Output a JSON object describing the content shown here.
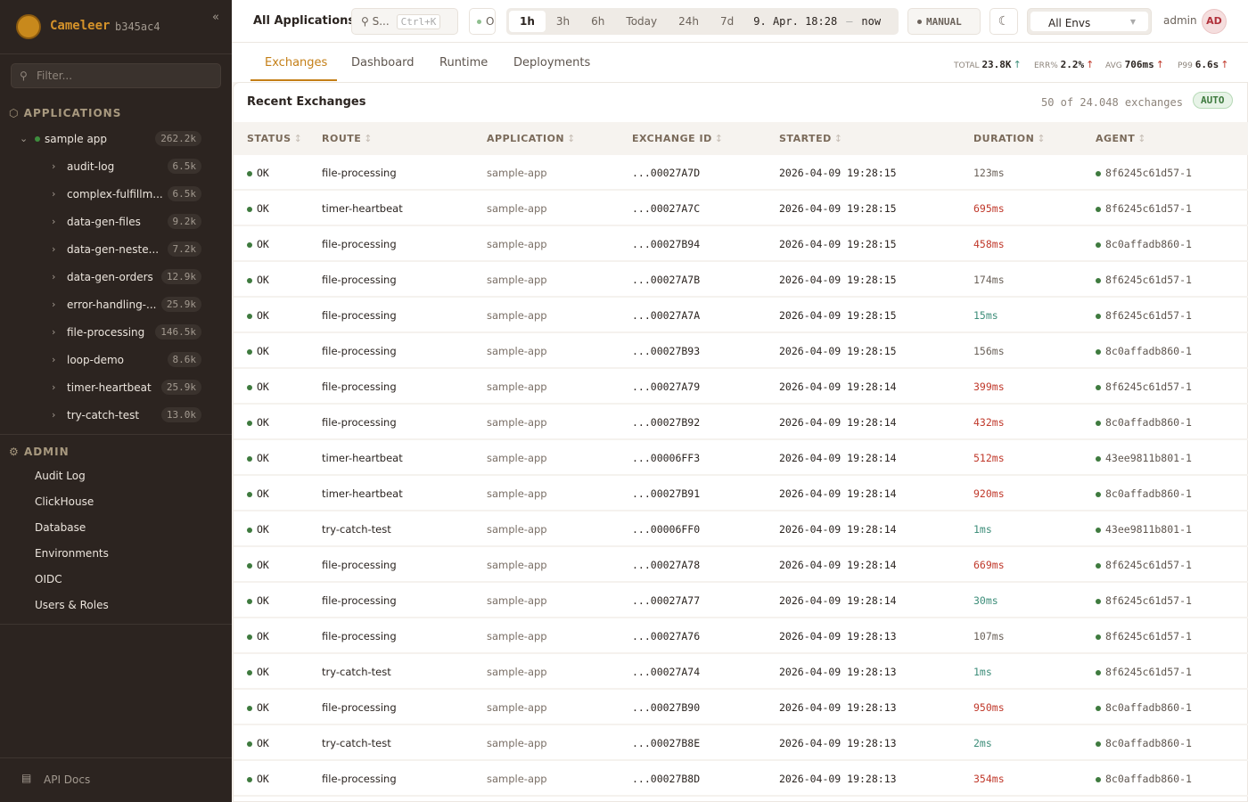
{
  "brand": {
    "name": "Cameleer",
    "version": "b345ac4"
  },
  "sidebar": {
    "filter_placeholder": "Filter...",
    "applications_label": "APPLICATIONS",
    "app": {
      "name": "sample app",
      "count": "262.2k",
      "status_color": "#3e8e3e"
    },
    "routes": [
      {
        "label": "audit-log",
        "count": "6.5k"
      },
      {
        "label": "complex-fulfillm...",
        "count": "6.5k"
      },
      {
        "label": "data-gen-files",
        "count": "9.2k"
      },
      {
        "label": "data-gen-neste...",
        "count": "7.2k"
      },
      {
        "label": "data-gen-orders",
        "count": "12.9k"
      },
      {
        "label": "error-handling-...",
        "count": "25.9k"
      },
      {
        "label": "file-processing",
        "count": "146.5k"
      },
      {
        "label": "loop-demo",
        "count": "8.6k"
      },
      {
        "label": "timer-heartbeat",
        "count": "25.9k"
      },
      {
        "label": "try-catch-test",
        "count": "13.0k"
      }
    ],
    "admin_label": "ADMIN",
    "admin_items": [
      "Audit Log",
      "ClickHouse",
      "Database",
      "Environments",
      "OIDC",
      "Users & Roles"
    ],
    "api_docs": "API Docs"
  },
  "topbar": {
    "title": "All Applications",
    "search_placeholder": "S...",
    "search_shortcut": "Ctrl+K",
    "status_label": "O",
    "ranges": [
      "1h",
      "3h",
      "6h",
      "Today",
      "24h",
      "7d"
    ],
    "active_range": "1h",
    "range_from": "9. Apr. 18:28",
    "range_sep": "–",
    "range_to": "now",
    "refresh_mode": "MANUAL",
    "env": "All Envs",
    "user": "admin",
    "avatar": "AD"
  },
  "tabs": [
    "Exchanges",
    "Dashboard",
    "Runtime",
    "Deployments"
  ],
  "active_tab": "Exchanges",
  "kpis": [
    {
      "label": "TOTAL",
      "value": "23.8K",
      "trend": "up",
      "color": "#3e8e7a"
    },
    {
      "label": "ERR%",
      "value": "2.2%",
      "trend": "up",
      "color": "#c0392b"
    },
    {
      "label": "AVG",
      "value": "706ms",
      "trend": "up",
      "color": "#c0392b"
    },
    {
      "label": "P99",
      "value": "6.6s",
      "trend": "up",
      "color": "#c0392b"
    }
  ],
  "exchanges": {
    "title": "Recent Exchanges",
    "count_text": "50 of 24.048 exchanges",
    "auto_label": "AUTO",
    "columns": [
      "STATUS",
      "ROUTE",
      "APPLICATION",
      "EXCHANGE ID",
      "STARTED",
      "DURATION",
      "AGENT"
    ],
    "rows": [
      [
        "OK",
        "file-processing",
        "sample-app",
        "...00027A7D",
        "2026-04-09 19:28:15",
        "123ms",
        "8f6245c61d57-1"
      ],
      [
        "OK",
        "timer-heartbeat",
        "sample-app",
        "...00027A7C",
        "2026-04-09 19:28:15",
        "695ms",
        "8f6245c61d57-1"
      ],
      [
        "OK",
        "file-processing",
        "sample-app",
        "...00027B94",
        "2026-04-09 19:28:15",
        "458ms",
        "8c0affadb860-1"
      ],
      [
        "OK",
        "file-processing",
        "sample-app",
        "...00027A7B",
        "2026-04-09 19:28:15",
        "174ms",
        "8f6245c61d57-1"
      ],
      [
        "OK",
        "file-processing",
        "sample-app",
        "...00027A7A",
        "2026-04-09 19:28:15",
        "15ms",
        "8f6245c61d57-1"
      ],
      [
        "OK",
        "file-processing",
        "sample-app",
        "...00027B93",
        "2026-04-09 19:28:15",
        "156ms",
        "8c0affadb860-1"
      ],
      [
        "OK",
        "file-processing",
        "sample-app",
        "...00027A79",
        "2026-04-09 19:28:14",
        "399ms",
        "8f6245c61d57-1"
      ],
      [
        "OK",
        "file-processing",
        "sample-app",
        "...00027B92",
        "2026-04-09 19:28:14",
        "432ms",
        "8c0affadb860-1"
      ],
      [
        "OK",
        "timer-heartbeat",
        "sample-app",
        "...00006FF3",
        "2026-04-09 19:28:14",
        "512ms",
        "43ee9811b801-1"
      ],
      [
        "OK",
        "timer-heartbeat",
        "sample-app",
        "...00027B91",
        "2026-04-09 19:28:14",
        "920ms",
        "8c0affadb860-1"
      ],
      [
        "OK",
        "try-catch-test",
        "sample-app",
        "...00006FF0",
        "2026-04-09 19:28:14",
        "1ms",
        "43ee9811b801-1"
      ],
      [
        "OK",
        "file-processing",
        "sample-app",
        "...00027A78",
        "2026-04-09 19:28:14",
        "669ms",
        "8f6245c61d57-1"
      ],
      [
        "OK",
        "file-processing",
        "sample-app",
        "...00027A77",
        "2026-04-09 19:28:14",
        "30ms",
        "8f6245c61d57-1"
      ],
      [
        "OK",
        "file-processing",
        "sample-app",
        "...00027A76",
        "2026-04-09 19:28:13",
        "107ms",
        "8f6245c61d57-1"
      ],
      [
        "OK",
        "try-catch-test",
        "sample-app",
        "...00027A74",
        "2026-04-09 19:28:13",
        "1ms",
        "8f6245c61d57-1"
      ],
      [
        "OK",
        "file-processing",
        "sample-app",
        "...00027B90",
        "2026-04-09 19:28:13",
        "950ms",
        "8c0affadb860-1"
      ],
      [
        "OK",
        "try-catch-test",
        "sample-app",
        "...00027B8E",
        "2026-04-09 19:28:13",
        "2ms",
        "8c0affadb860-1"
      ],
      [
        "OK",
        "file-processing",
        "sample-app",
        "...00027B8D",
        "2026-04-09 19:28:13",
        "354ms",
        "8c0affadb860-1"
      ]
    ]
  },
  "colors": {
    "accent": "#c47f17",
    "ok": "#3e7a3e",
    "slow": "#c0392b",
    "fast": "#3e8e7a",
    "sidebar_bg": "#2c2420"
  }
}
